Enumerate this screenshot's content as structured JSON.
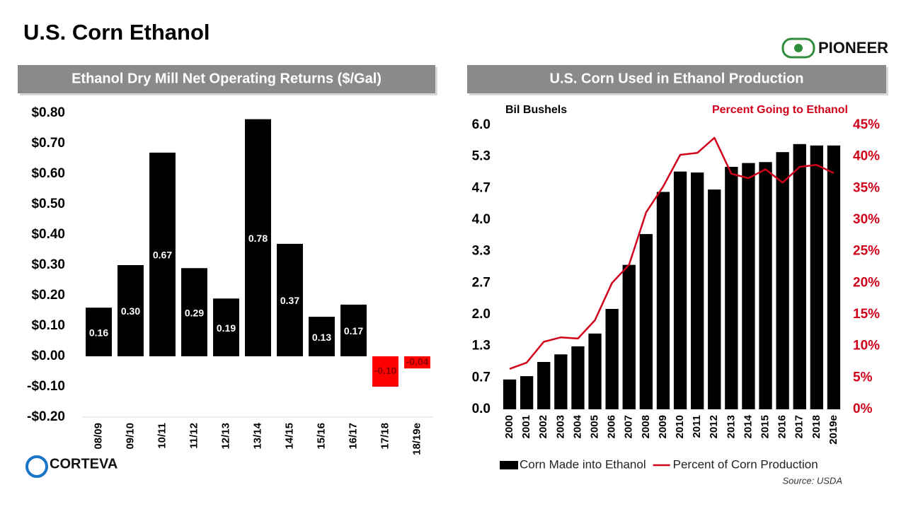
{
  "title": "U.S. Corn Ethanol",
  "logo": "PIONEER",
  "corteva": "CORTEVA",
  "source": "Source: USDA",
  "chart_data": [
    {
      "type": "bar",
      "title": "Ethanol Dry Mill Net Operating Returns ($/Gal)",
      "categories": [
        "08/09",
        "09/10",
        "10/11",
        "11/12",
        "12/13",
        "13/14",
        "14/15",
        "15/16",
        "16/17",
        "17/18",
        "18/19e"
      ],
      "values": [
        0.16,
        0.3,
        0.67,
        0.29,
        0.19,
        0.78,
        0.37,
        0.13,
        0.17,
        -0.1,
        -0.04
      ],
      "value_labels": [
        "0.16",
        "0.30",
        "0.67",
        "0.29",
        "0.19",
        "0.78",
        "0.37",
        "0.13",
        "0.17",
        "-0.10",
        "-0.04"
      ],
      "colors": [
        "#000000",
        "#000000",
        "#000000",
        "#000000",
        "#000000",
        "#000000",
        "#000000",
        "#000000",
        "#000000",
        "#ff0000",
        "#ff0000"
      ],
      "ylim": [
        -0.2,
        0.8
      ],
      "yticks": [
        {
          "value": 0.8,
          "label": "$0.80"
        },
        {
          "value": 0.7,
          "label": "$0.70"
        },
        {
          "value": 0.6,
          "label": "$0.60"
        },
        {
          "value": 0.5,
          "label": "$0.50"
        },
        {
          "value": 0.4,
          "label": "$0.40"
        },
        {
          "value": 0.3,
          "label": "$0.30"
        },
        {
          "value": 0.2,
          "label": "$0.20"
        },
        {
          "value": 0.1,
          "label": "$0.10"
        },
        {
          "value": 0,
          "label": "$0.00"
        },
        {
          "value": -0.1,
          "label": "-$0.10"
        },
        {
          "value": -0.2,
          "label": "-$0.20"
        }
      ],
      "grid": false
    },
    {
      "type": "combo",
      "title": "U.S. Corn Used in Ethanol Production",
      "ylabel": "Bil Bushels",
      "y2label": "Percent Going to Ethanol",
      "categories": [
        "2000",
        "2001",
        "2002",
        "2003",
        "2004",
        "2005",
        "2006",
        "2007",
        "2008",
        "2009",
        "2010",
        "2011",
        "2012",
        "2013",
        "2014",
        "2015",
        "2016",
        "2017",
        "2018",
        "2019e"
      ],
      "series": [
        {
          "name": "Corn Made into Ethanol",
          "type": "bar",
          "color": "#000000",
          "values": [
            0.63,
            0.7,
            1.0,
            1.16,
            1.33,
            1.6,
            2.12,
            3.05,
            3.7,
            4.59,
            5.02,
            5.0,
            4.64,
            5.12,
            5.2,
            5.22,
            5.43,
            5.6,
            5.57,
            5.57
          ]
        },
        {
          "name": "Percent of Corn Production",
          "type": "line",
          "color": "#d0021b",
          "axis": "y2",
          "values": [
            6.4,
            7.4,
            10.7,
            11.4,
            11.2,
            14.1,
            20.0,
            22.9,
            31.2,
            35.3,
            40.3,
            40.6,
            43.0,
            37.3,
            36.6,
            38.0,
            35.9,
            38.4,
            38.7,
            37.4
          ]
        }
      ],
      "ylim": [
        0,
        6
      ],
      "yticks": [
        {
          "value": 0,
          "label": "0.0"
        },
        {
          "value": 0.667,
          "label": "0.7"
        },
        {
          "value": 1.333,
          "label": "1.3"
        },
        {
          "value": 2,
          "label": "2.0"
        },
        {
          "value": 2.667,
          "label": "2.7"
        },
        {
          "value": 3.333,
          "label": "3.3"
        },
        {
          "value": 4,
          "label": "4.0"
        },
        {
          "value": 4.667,
          "label": "4.7"
        },
        {
          "value": 5.333,
          "label": "5.3"
        },
        {
          "value": 6,
          "label": "6.0"
        }
      ],
      "y2lim": [
        0,
        45
      ],
      "y2ticks": [
        {
          "value": 0,
          "label": "0%"
        },
        {
          "value": 5,
          "label": "5%"
        },
        {
          "value": 10,
          "label": "10%"
        },
        {
          "value": 15,
          "label": "15%"
        },
        {
          "value": 20,
          "label": "20%"
        },
        {
          "value": 25,
          "label": "25%"
        },
        {
          "value": 30,
          "label": "30%"
        },
        {
          "value": 35,
          "label": "35%"
        },
        {
          "value": 40,
          "label": "40%"
        },
        {
          "value": 45,
          "label": "45%"
        }
      ],
      "legend": "bottom"
    }
  ]
}
